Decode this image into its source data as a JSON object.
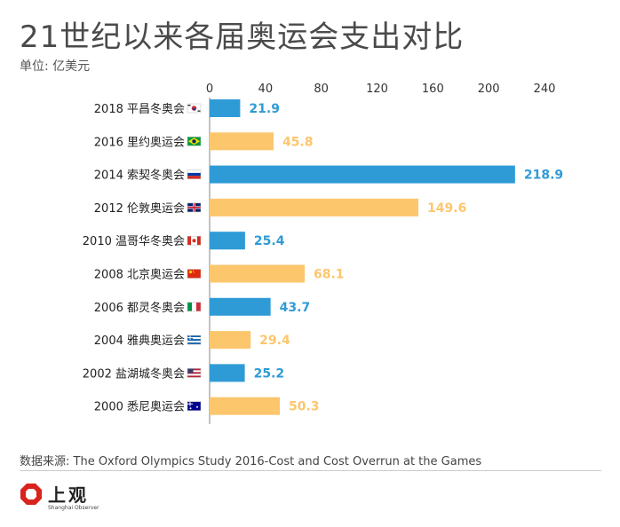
{
  "header": {
    "title": "21世纪以来各届奥运会支出对比",
    "unit": "单位: 亿美元"
  },
  "footer": {
    "source": "数据来源: The Oxford Olympics Study 2016-Cost and Cost Overrun at the Games"
  },
  "logo": {
    "text": "上观",
    "subtext": "Shanghai Observer"
  },
  "colors": {
    "winter": "#2f9bd6",
    "summer": "#fcc66d",
    "axis": "#999999"
  },
  "chart_data": {
    "type": "bar",
    "orientation": "horizontal",
    "title": "21世纪以来各届奥运会支出对比",
    "unit": "单位: 亿美元",
    "xlim": [
      0,
      240
    ],
    "xticks": [
      0,
      40,
      80,
      120,
      160,
      200,
      240
    ],
    "xtick_position": "top",
    "grid": false,
    "categories": [
      "2018 平昌冬奥会",
      "2016 里约奥运会",
      "2014 索契冬奥会",
      "2012 伦敦奥运会",
      "2010 温哥华冬奥会",
      "2008 北京奥运会",
      "2006 都灵冬奥会",
      "2004 雅典奥运会",
      "2002 盐湖城冬奥会",
      "2000 悉尼奥运会"
    ],
    "values": [
      21.9,
      45.8,
      218.9,
      149.6,
      25.4,
      68.1,
      43.7,
      29.4,
      25.2,
      50.3
    ],
    "games_type": [
      "winter",
      "summer",
      "winter",
      "summer",
      "winter",
      "summer",
      "winter",
      "summer",
      "winter",
      "summer"
    ],
    "flags": [
      "korea-flag-icon",
      "brazil-flag-icon",
      "russia-flag-icon",
      "uk-flag-icon",
      "canada-flag-icon",
      "china-flag-icon",
      "italy-flag-icon",
      "greece-flag-icon",
      "usa-flag-icon",
      "australia-flag-icon"
    ]
  }
}
